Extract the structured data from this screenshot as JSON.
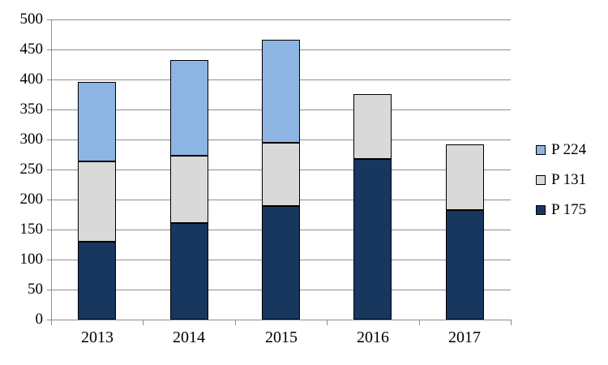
{
  "chart_data": {
    "type": "bar",
    "stacked": true,
    "title": "",
    "xlabel": "",
    "ylabel": "",
    "categories": [
      "2013",
      "2014",
      "2015",
      "2016",
      "2017"
    ],
    "series": [
      {
        "name": "P 175",
        "color": "#17375E",
        "values": [
          130,
          161,
          189,
          268,
          182
        ]
      },
      {
        "name": "P 131",
        "color": "#D9D9D9",
        "values": [
          134,
          112,
          105,
          108,
          110
        ]
      },
      {
        "name": "P 224",
        "color": "#8DB4E2",
        "values": [
          133,
          159,
          172,
          0,
          0
        ]
      }
    ],
    "stack_totals": [
      397,
      432,
      466,
      376,
      292
    ],
    "ylim": [
      0,
      500
    ],
    "ytick_step": 50,
    "ytick_labels": [
      "0",
      "50",
      "100",
      "150",
      "200",
      "250",
      "300",
      "350",
      "400",
      "450",
      "500"
    ],
    "grid": true,
    "legend_position": "right",
    "legend_order_top_to_bottom": [
      "P 224",
      "P 131",
      "P 175"
    ]
  },
  "legend": {
    "items": [
      {
        "label": "P 224",
        "color": "#8DB4E2"
      },
      {
        "label": "P 131",
        "color": "#D9D9D9"
      },
      {
        "label": "P 175",
        "color": "#17375E"
      }
    ]
  },
  "colors": {
    "background": "#FFFFFF",
    "gridline": "#8E8E8E",
    "axis": "#8E8E8E",
    "bar_border": "#000000",
    "text": "#000000"
  }
}
